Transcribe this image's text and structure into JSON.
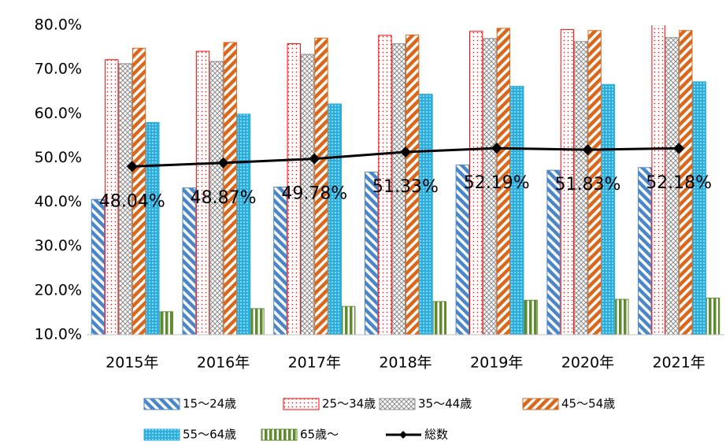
{
  "chart_data": {
    "type": "bar",
    "categories": [
      "2015年",
      "2016年",
      "2017年",
      "2018年",
      "2019年",
      "2020年",
      "2021年"
    ],
    "ylim": [
      10,
      80
    ],
    "yticks": [
      {
        "value": 10,
        "label": "10.0%"
      },
      {
        "value": 20,
        "label": "20.0%"
      },
      {
        "value": 30,
        "label": "30.0%"
      },
      {
        "value": 40,
        "label": "40.0%"
      },
      {
        "value": 50,
        "label": "50.0%"
      },
      {
        "value": 60,
        "label": "60.0%"
      },
      {
        "value": 70,
        "label": "70.0%"
      },
      {
        "value": 80,
        "label": "80.0%"
      }
    ],
    "grid": false,
    "series": [
      {
        "name": "15～24歳",
        "color": "#4a86c8",
        "pattern": "diagonal-down",
        "values": [
          40.6,
          43.2,
          43.4,
          46.8,
          48.4,
          47.2,
          47.8
        ]
      },
      {
        "name": "25～34歳",
        "color": "#ff0000",
        "pattern": "dots",
        "values": [
          72.2,
          74.1,
          75.8,
          77.7,
          78.6,
          79.0,
          80.5
        ]
      },
      {
        "name": "35～44歳",
        "color": "#8c8c8c",
        "pattern": "cross",
        "values": [
          71.3,
          71.8,
          73.4,
          75.8,
          77.0,
          76.3,
          77.2
        ]
      },
      {
        "name": "45～54歳",
        "color": "#d9681c",
        "pattern": "diagonal-up",
        "values": [
          74.8,
          76.1,
          77.1,
          77.8,
          79.3,
          78.8,
          78.8
        ]
      },
      {
        "name": "55～64歳",
        "color": "#2aaee0",
        "pattern": "dense-dots",
        "values": [
          58.0,
          59.9,
          62.2,
          64.4,
          66.2,
          66.6,
          67.2
        ]
      },
      {
        "name": "65歳～",
        "color": "#5f8a2e",
        "pattern": "vertical",
        "values": [
          15.2,
          15.9,
          16.4,
          17.5,
          17.8,
          18.0,
          18.3
        ]
      },
      {
        "name": "総数",
        "color": "#000000",
        "type": "line",
        "values": [
          48.04,
          48.87,
          49.78,
          51.33,
          52.19,
          51.83,
          52.18
        ],
        "value_labels": [
          "48.04%",
          "48.87%",
          "49.78%",
          "51.33%",
          "52.19%",
          "51.83%",
          "52.18%"
        ]
      }
    ]
  }
}
